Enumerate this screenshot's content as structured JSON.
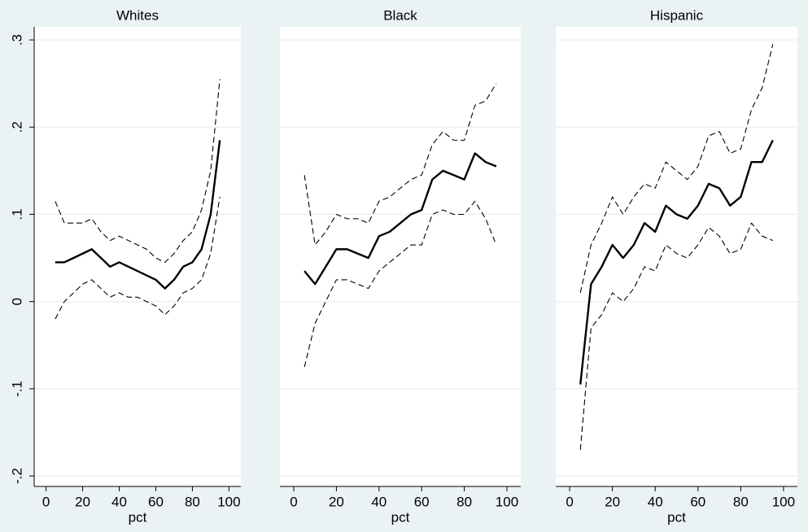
{
  "chart_data": [
    {
      "type": "line",
      "title": "Whites",
      "x_label": "pct",
      "x": [
        5,
        10,
        15,
        20,
        25,
        30,
        35,
        40,
        45,
        50,
        55,
        60,
        65,
        70,
        75,
        80,
        85,
        90,
        95
      ],
      "xlim": [
        -6.5,
        106.5
      ],
      "xticks": [
        0,
        20,
        40,
        60,
        80,
        100
      ],
      "ylim": [
        -0.212,
        0.315
      ],
      "yticks": [
        {
          "value": -0.2,
          "label": "-.2"
        },
        {
          "value": -0.1,
          "label": "-.1"
        },
        0,
        {
          "value": 0.1,
          "label": ".1"
        },
        {
          "value": 0.2,
          "label": ".2"
        },
        {
          "value": 0.3,
          "label": ".3"
        }
      ],
      "grid": true,
      "series": [
        {
          "color": "#000000",
          "style": "solid",
          "values": [
            0.045,
            0.045,
            0.05,
            0.055,
            0.06,
            0.05,
            0.04,
            0.045,
            0.04,
            0.035,
            0.03,
            0.025,
            0.015,
            0.025,
            0.04,
            0.045,
            0.06,
            0.1,
            0.185
          ]
        },
        {
          "color": "#000000",
          "style": "dashed",
          "values": [
            0.115,
            0.09,
            0.09,
            0.09,
            0.095,
            0.08,
            0.07,
            0.075,
            0.07,
            0.065,
            0.06,
            0.05,
            0.045,
            0.055,
            0.07,
            0.08,
            0.105,
            0.15,
            0.255
          ]
        },
        {
          "color": "#000000",
          "style": "dashed",
          "values": [
            -0.02,
            0.0,
            0.01,
            0.02,
            0.025,
            0.015,
            0.005,
            0.01,
            0.005,
            0.005,
            0.0,
            -0.005,
            -0.015,
            -0.005,
            0.01,
            0.015,
            0.025,
            0.055,
            0.12
          ]
        }
      ]
    },
    {
      "type": "line",
      "title": "Black",
      "x_label": "pct",
      "x": [
        5,
        10,
        15,
        20,
        25,
        30,
        35,
        40,
        45,
        50,
        55,
        60,
        65,
        70,
        75,
        80,
        85,
        90,
        95
      ],
      "xlim": [
        -6.5,
        106.5
      ],
      "xticks": [
        0,
        20,
        40,
        60,
        80,
        100
      ],
      "ylim": [
        -0.212,
        0.315
      ],
      "grid": true,
      "series": [
        {
          "color": "#000000",
          "style": "solid",
          "values": [
            0.035,
            0.02,
            0.04,
            0.06,
            0.06,
            0.055,
            0.05,
            0.075,
            0.08,
            0.09,
            0.1,
            0.105,
            0.14,
            0.15,
            0.145,
            0.14,
            0.17,
            0.16,
            0.155
          ]
        },
        {
          "color": "#000000",
          "style": "dashed",
          "values": [
            0.145,
            0.065,
            0.08,
            0.1,
            0.095,
            0.095,
            0.09,
            0.115,
            0.12,
            0.13,
            0.14,
            0.145,
            0.18,
            0.195,
            0.185,
            0.185,
            0.225,
            0.23,
            0.25
          ]
        },
        {
          "color": "#000000",
          "style": "dashed",
          "values": [
            -0.075,
            -0.025,
            0.0,
            0.025,
            0.025,
            0.02,
            0.015,
            0.035,
            0.045,
            0.055,
            0.065,
            0.065,
            0.1,
            0.105,
            0.1,
            0.1,
            0.115,
            0.095,
            0.065
          ]
        }
      ]
    },
    {
      "type": "line",
      "title": "Hispanic",
      "x_label": "pct",
      "x": [
        5,
        10,
        15,
        20,
        25,
        30,
        35,
        40,
        45,
        50,
        55,
        60,
        65,
        70,
        75,
        80,
        85,
        90,
        95
      ],
      "xlim": [
        -6.5,
        106.5
      ],
      "xticks": [
        0,
        20,
        40,
        60,
        80,
        100
      ],
      "ylim": [
        -0.212,
        0.315
      ],
      "grid": true,
      "series": [
        {
          "color": "#000000",
          "style": "solid",
          "values": [
            -0.095,
            0.02,
            0.04,
            0.065,
            0.05,
            0.065,
            0.09,
            0.08,
            0.11,
            0.1,
            0.095,
            0.11,
            0.135,
            0.13,
            0.11,
            0.12,
            0.16,
            0.16,
            0.185
          ]
        },
        {
          "color": "#000000",
          "style": "dashed",
          "values": [
            0.01,
            0.065,
            0.09,
            0.12,
            0.1,
            0.12,
            0.135,
            0.13,
            0.16,
            0.15,
            0.14,
            0.155,
            0.19,
            0.195,
            0.17,
            0.175,
            0.22,
            0.245,
            0.295
          ]
        },
        {
          "color": "#000000",
          "style": "dashed",
          "values": [
            -0.17,
            -0.03,
            -0.015,
            0.01,
            0.0,
            0.015,
            0.04,
            0.035,
            0.065,
            0.055,
            0.05,
            0.065,
            0.085,
            0.075,
            0.055,
            0.06,
            0.09,
            0.075,
            0.07
          ]
        }
      ]
    }
  ]
}
